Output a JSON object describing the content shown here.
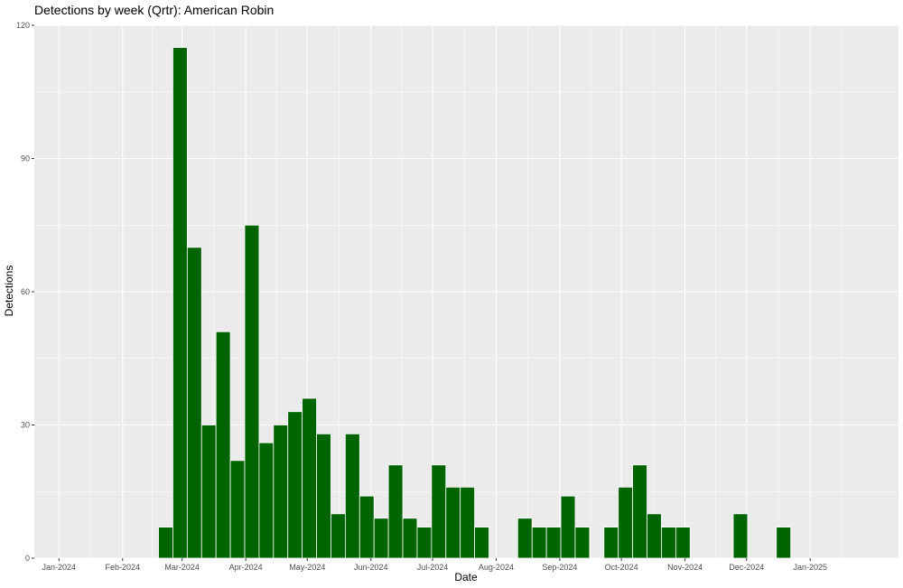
{
  "chart_data": {
    "type": "bar",
    "title": "Detections by week (Qrtr): American Robin",
    "xlabel": "Date",
    "ylabel": "Detections",
    "ylim": [
      0,
      120
    ],
    "y_ticks": [
      0,
      30,
      60,
      90,
      120
    ],
    "x_range": [
      "2023-12-20",
      "2025-02-13"
    ],
    "x_tick_labels": [
      {
        "date": "2024-01-01",
        "label": "Jan-2024"
      },
      {
        "date": "2024-02-01",
        "label": "Feb-2024"
      },
      {
        "date": "2024-03-01",
        "label": "Mar-2024"
      },
      {
        "date": "2024-04-01",
        "label": "Apr-2024"
      },
      {
        "date": "2024-05-01",
        "label": "May-2024"
      },
      {
        "date": "2024-06-01",
        "label": "Jun-2024"
      },
      {
        "date": "2024-07-01",
        "label": "Jul-2024"
      },
      {
        "date": "2024-08-01",
        "label": "Aug-2024"
      },
      {
        "date": "2024-09-01",
        "label": "Sep-2024"
      },
      {
        "date": "2024-10-01",
        "label": "Oct-2024"
      },
      {
        "date": "2024-11-01",
        "label": "Nov-2024"
      },
      {
        "date": "2024-12-01",
        "label": "Dec-2024"
      },
      {
        "date": "2025-01-01",
        "label": "Jan-2025"
      }
    ],
    "bar_color": "#006400",
    "panel_background": "#ebebeb",
    "grid": true,
    "bars": [
      {
        "week": "2024-02-22",
        "value": 7
      },
      {
        "week": "2024-02-29",
        "value": 115
      },
      {
        "week": "2024-03-07",
        "value": 70
      },
      {
        "week": "2024-03-14",
        "value": 30
      },
      {
        "week": "2024-03-21",
        "value": 51
      },
      {
        "week": "2024-03-28",
        "value": 22
      },
      {
        "week": "2024-04-04",
        "value": 75
      },
      {
        "week": "2024-04-11",
        "value": 26
      },
      {
        "week": "2024-04-18",
        "value": 30
      },
      {
        "week": "2024-04-25",
        "value": 33
      },
      {
        "week": "2024-05-02",
        "value": 36
      },
      {
        "week": "2024-05-09",
        "value": 28
      },
      {
        "week": "2024-05-16",
        "value": 10
      },
      {
        "week": "2024-05-23",
        "value": 28
      },
      {
        "week": "2024-05-30",
        "value": 14
      },
      {
        "week": "2024-06-06",
        "value": 9
      },
      {
        "week": "2024-06-13",
        "value": 21
      },
      {
        "week": "2024-06-20",
        "value": 9
      },
      {
        "week": "2024-06-27",
        "value": 7
      },
      {
        "week": "2024-07-04",
        "value": 21
      },
      {
        "week": "2024-07-11",
        "value": 16
      },
      {
        "week": "2024-07-18",
        "value": 16
      },
      {
        "week": "2024-07-25",
        "value": 7
      },
      {
        "week": "2024-08-15",
        "value": 9
      },
      {
        "week": "2024-08-22",
        "value": 7
      },
      {
        "week": "2024-08-29",
        "value": 7
      },
      {
        "week": "2024-09-05",
        "value": 14
      },
      {
        "week": "2024-09-12",
        "value": 7
      },
      {
        "week": "2024-09-26",
        "value": 7
      },
      {
        "week": "2024-10-03",
        "value": 16
      },
      {
        "week": "2024-10-10",
        "value": 21
      },
      {
        "week": "2024-10-17",
        "value": 10
      },
      {
        "week": "2024-10-24",
        "value": 7
      },
      {
        "week": "2024-10-31",
        "value": 7
      },
      {
        "week": "2024-11-28",
        "value": 10
      },
      {
        "week": "2024-12-19",
        "value": 7
      }
    ]
  }
}
